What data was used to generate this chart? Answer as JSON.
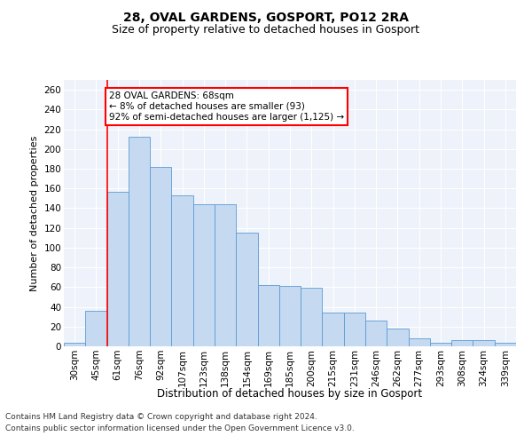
{
  "title1": "28, OVAL GARDENS, GOSPORT, PO12 2RA",
  "title2": "Size of property relative to detached houses in Gosport",
  "xlabel": "Distribution of detached houses by size in Gosport",
  "ylabel": "Number of detached properties",
  "categories": [
    "30sqm",
    "45sqm",
    "61sqm",
    "76sqm",
    "92sqm",
    "107sqm",
    "123sqm",
    "138sqm",
    "154sqm",
    "169sqm",
    "185sqm",
    "200sqm",
    "215sqm",
    "231sqm",
    "246sqm",
    "262sqm",
    "277sqm",
    "293sqm",
    "308sqm",
    "324sqm",
    "339sqm"
  ],
  "values": [
    4,
    36,
    157,
    212,
    182,
    153,
    144,
    144,
    115,
    62,
    61,
    59,
    34,
    34,
    26,
    18,
    8,
    4,
    6,
    6,
    4
  ],
  "bar_color": "#c5d9f0",
  "bar_edge_color": "#5b9bd5",
  "vline_x": 1.5,
  "vline_color": "red",
  "annotation_text": "28 OVAL GARDENS: 68sqm\n← 8% of detached houses are smaller (93)\n92% of semi-detached houses are larger (1,125) →",
  "annotation_box_color": "white",
  "annotation_box_edge_color": "red",
  "footnote1": "Contains HM Land Registry data © Crown copyright and database right 2024.",
  "footnote2": "Contains public sector information licensed under the Open Government Licence v3.0.",
  "ylim": [
    0,
    270
  ],
  "yticks": [
    0,
    20,
    40,
    60,
    80,
    100,
    120,
    140,
    160,
    180,
    200,
    220,
    240,
    260
  ],
  "bg_color": "#eef2fa",
  "grid_color": "#ffffff",
  "title1_fontsize": 10,
  "title2_fontsize": 9,
  "xlabel_fontsize": 8.5,
  "ylabel_fontsize": 8,
  "tick_fontsize": 7.5,
  "footnote_fontsize": 6.5,
  "annotation_fontsize": 7.5
}
